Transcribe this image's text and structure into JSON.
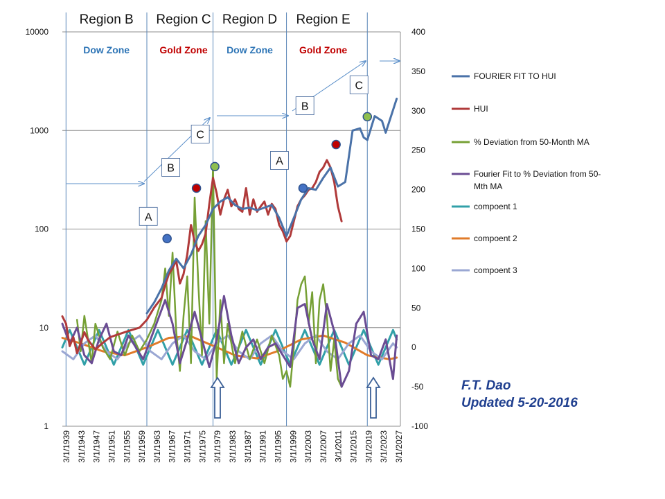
{
  "chart_data": {
    "type": "line",
    "left_axis": {
      "scale": "log",
      "range": [
        1,
        10000
      ],
      "ticks": [
        "1",
        "10",
        "100",
        "1000",
        "10000"
      ]
    },
    "right_axis": {
      "scale": "linear",
      "range": [
        -100,
        400
      ],
      "ticks": [
        "-100",
        "-50",
        "0",
        "50",
        "100",
        "150",
        "200",
        "250",
        "300",
        "350",
        "400"
      ]
    },
    "x_range": [
      1939,
      2031
    ],
    "x_ticks": [
      "3/1/1939",
      "3/1/1943",
      "3/1/1947",
      "3/1/1951",
      "3/1/1955",
      "3/1/1959",
      "3/1/1963",
      "3/1/1967",
      "3/1/1971",
      "3/1/1975",
      "3/1/1979",
      "3/1/1983",
      "3/1/1987",
      "3/1/1991",
      "3/1/1995",
      "3/1/1999",
      "3/1/2003",
      "3/1/2007",
      "3/1/2011",
      "3/1/2015",
      "3/1/2019",
      "3/1/2023",
      "3/1/2027"
    ],
    "grid": "horizontal",
    "legend_position": "right",
    "regions": [
      {
        "label": "Region B",
        "zone": "Dow Zone",
        "zone_color": "#2e75b6",
        "x_center": 1951
      },
      {
        "label": "Region C",
        "zone": "Gold Zone",
        "zone_color": "#c00000",
        "x_center": 1972
      },
      {
        "label": "Region D",
        "zone": "Dow Zone",
        "zone_color": "#2e75b6",
        "x_center": 1990
      },
      {
        "label": "Region E",
        "zone": "Gold Zone",
        "zone_color": "#c00000",
        "x_center": 2010
      }
    ],
    "vertical_lines": [
      1940,
      1962,
      1980,
      2000,
      2022
    ],
    "series": [
      {
        "name": "FOURIER FIT TO HUI",
        "color": "#4a72a8",
        "axis": "left",
        "x": [
          1962,
          1964,
          1966,
          1968,
          1970,
          1972,
          1974,
          1976,
          1978,
          1980,
          1982,
          1984,
          1986,
          1988,
          1990,
          1992,
          1994,
          1996,
          1998,
          2000,
          2002,
          2004,
          2006,
          2008,
          2010,
          2012,
          2014,
          2016,
          2018,
          2020,
          2021,
          2022,
          2024,
          2026,
          2027,
          2030
        ],
        "y": [
          14,
          18,
          25,
          38,
          50,
          40,
          55,
          85,
          110,
          160,
          190,
          210,
          175,
          160,
          165,
          155,
          165,
          175,
          130,
          85,
          130,
          200,
          260,
          250,
          330,
          420,
          270,
          300,
          1000,
          1050,
          850,
          800,
          1400,
          1250,
          950,
          2100
        ]
      },
      {
        "name": "HUI",
        "color": "#b03a3a",
        "axis": "left",
        "x": [
          1939,
          1940,
          1941,
          1942,
          1943,
          1944,
          1945,
          1946,
          1948,
          1950,
          1952,
          1954,
          1956,
          1958,
          1960,
          1962,
          1964,
          1966,
          1967,
          1968,
          1969,
          1970,
          1971,
          1972,
          1973,
          1974,
          1975,
          1976,
          1977,
          1978,
          1979,
          1980,
          1981,
          1982,
          1983,
          1984,
          1985,
          1986,
          1987,
          1988,
          1989,
          1990,
          1991,
          1992,
          1993,
          1994,
          1995,
          1996,
          1997,
          1998,
          1999,
          2000,
          2001,
          2002,
          2003,
          2004,
          2005,
          2006,
          2007,
          2008,
          2009,
          2010,
          2011,
          2012,
          2013,
          2014,
          2015
        ],
        "y": [
          13,
          11,
          6.5,
          8,
          5.5,
          7,
          9,
          7.5,
          6,
          7,
          8,
          8.5,
          9,
          9.5,
          10,
          12,
          16,
          20,
          27,
          35,
          40,
          48,
          28,
          35,
          55,
          110,
          75,
          60,
          70,
          90,
          180,
          330,
          230,
          140,
          200,
          250,
          170,
          200,
          160,
          150,
          260,
          140,
          200,
          150,
          170,
          190,
          140,
          180,
          160,
          110,
          95,
          75,
          85,
          120,
          170,
          200,
          220,
          250,
          260,
          300,
          380,
          420,
          500,
          420,
          300,
          170,
          120
        ]
      },
      {
        "name": "% Deviation from 50-Month MA",
        "color": "#76a035",
        "axis": "right",
        "x": [
          1943,
          1944,
          1945,
          1946,
          1947,
          1948,
          1950,
          1952,
          1954,
          1956,
          1958,
          1960,
          1962,
          1964,
          1966,
          1967,
          1968,
          1969,
          1970,
          1971,
          1972,
          1973,
          1974,
          1975,
          1976,
          1977,
          1978,
          1979,
          1980,
          1981,
          1982,
          1983,
          1984,
          1986,
          1988,
          1990,
          1992,
          1994,
          1996,
          1998,
          1999,
          2000,
          2001,
          2002,
          2003,
          2004,
          2005,
          2006,
          2007,
          2008,
          2009,
          2010,
          2011,
          2012,
          2013,
          2014,
          2015
        ],
        "y": [
          35,
          -5,
          40,
          10,
          -20,
          30,
          0,
          -15,
          20,
          -10,
          15,
          -5,
          10,
          30,
          60,
          100,
          40,
          120,
          20,
          -30,
          40,
          90,
          -20,
          190,
          80,
          -10,
          160,
          30,
          230,
          -40,
          60,
          -20,
          30,
          -20,
          20,
          -15,
          10,
          -20,
          15,
          -10,
          -40,
          -30,
          -50,
          0,
          60,
          80,
          90,
          30,
          70,
          -20,
          60,
          80,
          40,
          -30,
          10,
          -40,
          -50
        ]
      },
      {
        "name": "Fourier Fit to % Deviation from 50-Mth MA",
        "color": "#6a4c93",
        "axis": "right",
        "x": [
          1939,
          1941,
          1943,
          1945,
          1947,
          1949,
          1951,
          1953,
          1955,
          1957,
          1959,
          1961,
          1963,
          1965,
          1967,
          1969,
          1971,
          1973,
          1975,
          1977,
          1979,
          1981,
          1983,
          1985,
          1987,
          1989,
          1991,
          1993,
          1995,
          1997,
          1999,
          2001,
          2003,
          2005,
          2007,
          2009,
          2011,
          2013,
          2015,
          2017,
          2019,
          2021,
          2023,
          2025,
          2027,
          2029,
          2030
        ],
        "y": [
          30,
          5,
          25,
          -10,
          -20,
          10,
          30,
          -5,
          -10,
          15,
          0,
          -15,
          10,
          35,
          60,
          30,
          -20,
          10,
          45,
          10,
          -25,
          10,
          65,
          15,
          -20,
          0,
          10,
          -15,
          0,
          5,
          -10,
          -25,
          50,
          55,
          10,
          -15,
          55,
          20,
          -50,
          -30,
          30,
          45,
          -10,
          -15,
          10,
          -40,
          15
        ]
      },
      {
        "name": "compoent 1",
        "color": "#31a0a8",
        "axis": "right",
        "x": [
          1939,
          1941,
          1943,
          1945,
          1947,
          1949,
          1951,
          1953,
          1955,
          1957,
          1959,
          1961,
          1963,
          1965,
          1967,
          1969,
          1971,
          1973,
          1975,
          1977,
          1979,
          1981,
          1983,
          1985,
          1987,
          1989,
          1991,
          1993,
          1995,
          1997,
          1999,
          2001,
          2003,
          2005,
          2007,
          2009,
          2011,
          2013,
          2015,
          2017,
          2019,
          2021,
          2023,
          2025,
          2027,
          2029,
          2030
        ],
        "y": [
          0,
          22,
          0,
          -22,
          0,
          22,
          0,
          -22,
          0,
          22,
          0,
          -22,
          0,
          22,
          0,
          -22,
          0,
          22,
          0,
          -22,
          0,
          22,
          0,
          -22,
          0,
          22,
          0,
          -22,
          0,
          22,
          0,
          -22,
          0,
          22,
          0,
          -22,
          0,
          22,
          0,
          -22,
          0,
          22,
          0,
          -22,
          0,
          22,
          10
        ]
      },
      {
        "name": "compoent 2",
        "color": "#e07b2a",
        "axis": "right",
        "x": [
          1939,
          1944,
          1950,
          1956,
          1962,
          1968,
          1974,
          1980,
          1986,
          1992,
          1998,
          2004,
          2010,
          2016,
          2022,
          2028,
          2030
        ],
        "y": [
          12,
          5,
          -5,
          -10,
          0,
          12,
          14,
          2,
          -10,
          -14,
          -4,
          10,
          15,
          6,
          -10,
          -15,
          -13
        ]
      },
      {
        "name": "compoent 3",
        "color": "#9aa7d3",
        "axis": "right",
        "x": [
          1939,
          1942,
          1945,
          1948,
          1951,
          1954,
          1957,
          1960,
          1963,
          1966,
          1969,
          1972,
          1975,
          1978,
          1981,
          1984,
          1987,
          1990,
          1993,
          1996,
          1999,
          2002,
          2005,
          2008,
          2011,
          2014,
          2017,
          2020,
          2023,
          2026,
          2029,
          2030
        ],
        "y": [
          -5,
          -15,
          5,
          15,
          -5,
          -15,
          5,
          15,
          -5,
          -15,
          5,
          15,
          -5,
          -15,
          5,
          15,
          -5,
          -15,
          5,
          15,
          -5,
          -15,
          5,
          15,
          -5,
          -15,
          5,
          15,
          -5,
          -15,
          5,
          0
        ]
      }
    ],
    "markers": [
      {
        "label": "A",
        "x": 1967.5,
        "y": 80,
        "color": "#4472c4"
      },
      {
        "label": "B",
        "x": 1975.5,
        "y": 260,
        "color": "#c00000"
      },
      {
        "label": "C",
        "x": 1980.5,
        "y": 430,
        "color": "#8fbf4f"
      },
      {
        "label": "A",
        "x": 2004.5,
        "y": 260,
        "color": "#4472c4"
      },
      {
        "label": "B",
        "x": 2013.5,
        "y": 720,
        "color": "#c00000"
      },
      {
        "label": "C",
        "x": 2022,
        "y": 1380,
        "color": "#8fbf4f"
      }
    ]
  },
  "author": {
    "name": "F.T. Dao",
    "updated": "Updated 5-20-2016"
  }
}
